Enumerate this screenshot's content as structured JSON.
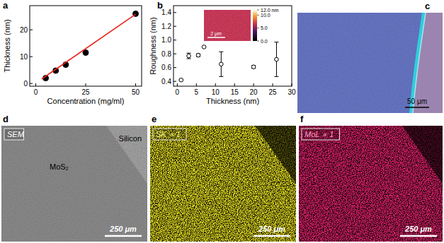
{
  "chart_data": [
    {
      "type": "scatter",
      "x_label": "Concentration (mg/ml)",
      "y_label": "Thickness (nm)",
      "xlim": [
        -3,
        53
      ],
      "ylim": [
        -1,
        29
      ],
      "xticks": [
        0,
        25,
        50
      ],
      "yticks": [
        0,
        10,
        20
      ],
      "series": [
        {
          "type": "scatter",
          "marker": "circle",
          "color": "#000000",
          "x": [
            5,
            10,
            15,
            25,
            50
          ],
          "values": [
            2,
            4.8,
            7,
            11.5,
            26
          ]
        },
        {
          "type": "line",
          "color": "#e8231c",
          "x": [
            3,
            50
          ],
          "values": [
            1.7,
            25.8
          ]
        }
      ]
    },
    {
      "type": "scatter",
      "x_label": "Thickness (nm)",
      "y_label": "Roughness (nm)",
      "xlim": [
        -1,
        30
      ],
      "ylim": [
        0.33,
        1.5
      ],
      "xticks": [
        0,
        5,
        10,
        15,
        20,
        25,
        30
      ],
      "yticks": [
        0.4,
        0.6,
        0.8,
        {
          "value": 1,
          "label": "1.0"
        },
        1.2,
        1.4
      ],
      "series": [
        {
          "type": "scatter",
          "marker": "open-circle",
          "color": "#000000",
          "x": [
            1,
            3,
            5.5,
            7,
            11.5,
            20,
            26
          ],
          "values": [
            0.42,
            0.77,
            0.78,
            0.9,
            0.65,
            0.61,
            0.72
          ],
          "errors": [
            0.01,
            0.04,
            0.02,
            0.01,
            0.18,
            0.02,
            0.25
          ]
        }
      ],
      "inset": {
        "scale_bar": "2 μm",
        "colorbar": {
          "range": [
            0,
            12
          ],
          "ticks": [
            {
              "value": 0,
              "label": "0.0"
            },
            {
              "value": 5,
              "label": "5.0"
            },
            {
              "value": 10,
              "label": "10.0"
            },
            {
              "value": 12,
              "label": "12.0 nm"
            }
          ]
        }
      }
    }
  ],
  "panels": {
    "labels": [
      "a",
      "b",
      "c",
      "d",
      "e",
      "f"
    ],
    "c": {
      "scale_bar": "50 μm"
    },
    "d": {
      "badge": "SEM",
      "region_labels": [
        "MoS₂",
        "Silicon"
      ],
      "scale_bar": "250 μm"
    },
    "e": {
      "badge": "SK ∝ 1",
      "scale_bar": "250 μm"
    },
    "f": {
      "badge": "MoL ∝ 1",
      "scale_bar": "250 μm"
    }
  }
}
